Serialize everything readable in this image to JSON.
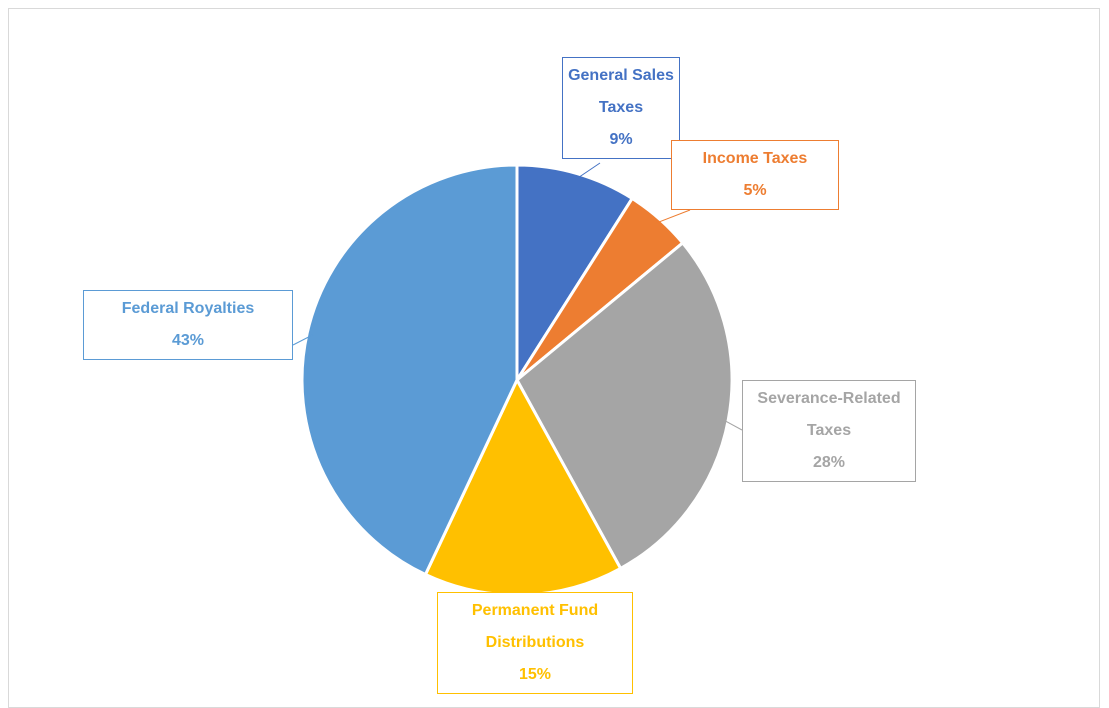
{
  "chart_data": {
    "type": "pie",
    "categories": [
      "General Sales Taxes",
      "Income Taxes",
      "Severance-Related Taxes",
      "Permanent Fund Distributions",
      "Federal Royalties"
    ],
    "values": [
      9,
      5,
      28,
      15,
      43
    ],
    "value_labels": [
      "9%",
      "5%",
      "28%",
      "15%",
      "43%"
    ],
    "colors": [
      "#4472c4",
      "#ed7d31",
      "#a5a5a5",
      "#ffc000",
      "#5b9bd5"
    ]
  }
}
